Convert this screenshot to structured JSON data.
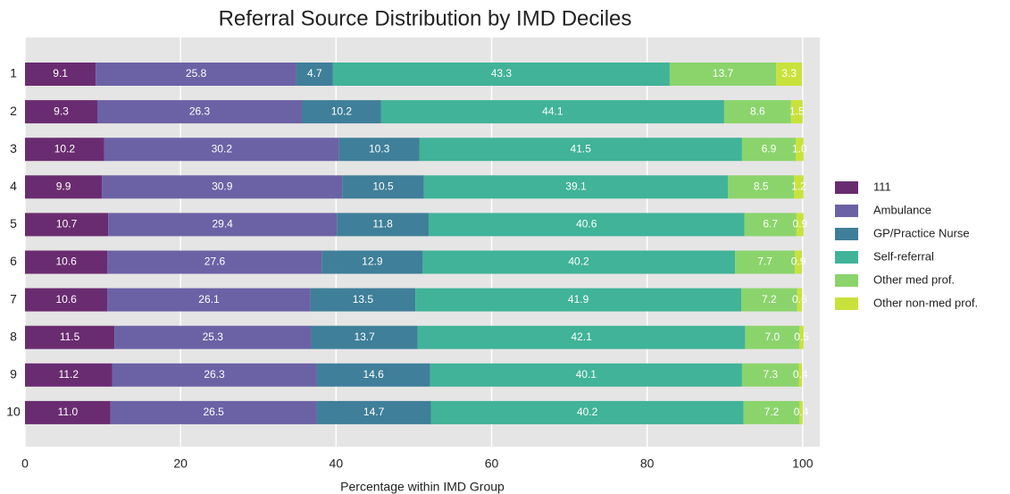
{
  "chart_data": {
    "type": "stacked_barh",
    "title": "Referral Source Distribution by IMD Deciles",
    "xlabel": "Percentage within IMD Group",
    "categories": [
      "1",
      "2",
      "3",
      "4",
      "5",
      "6",
      "7",
      "8",
      "9",
      "10"
    ],
    "series": [
      {
        "name": "111",
        "color": "#6a2c70",
        "values": [
          9.1,
          9.3,
          10.2,
          9.9,
          10.7,
          10.6,
          10.6,
          11.5,
          11.2,
          11.0
        ],
        "value_labels": [
          "9.1",
          "9.3",
          "10.2",
          "9.9",
          "10.7",
          "10.6",
          "10.6",
          "11.5",
          "11.2",
          "11.0"
        ]
      },
      {
        "name": "Ambulance",
        "color": "#6b62a6",
        "values": [
          25.8,
          26.3,
          30.2,
          30.9,
          29.4,
          27.6,
          26.1,
          25.3,
          26.3,
          26.5
        ],
        "value_labels": [
          "25.8",
          "26.3",
          "30.2",
          "30.9",
          "29.4",
          "27.6",
          "26.1",
          "25.3",
          "26.3",
          "26.5"
        ]
      },
      {
        "name": "GP/Practice Nurse",
        "color": "#3f7f99",
        "values": [
          4.7,
          10.2,
          10.3,
          10.5,
          11.8,
          12.9,
          13.5,
          13.7,
          14.6,
          14.7
        ],
        "value_labels": [
          "4.7",
          "10.2",
          "10.3",
          "10.5",
          "11.8",
          "12.9",
          "13.5",
          "13.7",
          "14.6",
          "14.7"
        ]
      },
      {
        "name": "Self-referral",
        "color": "#40b398",
        "values": [
          43.3,
          44.1,
          41.5,
          39.1,
          40.6,
          40.2,
          41.9,
          42.1,
          40.1,
          40.2
        ],
        "value_labels": [
          "43.3",
          "44.1",
          "41.5",
          "39.1",
          "40.6",
          "40.2",
          "41.9",
          "42.1",
          "40.1",
          "40.2"
        ]
      },
      {
        "name": "Other med prof.",
        "color": "#8bd46c",
        "values": [
          13.7,
          8.6,
          6.9,
          8.5,
          6.7,
          7.7,
          7.2,
          7.0,
          7.3,
          7.2
        ],
        "value_labels": [
          "13.7",
          "8.6",
          "6.9",
          "8.5",
          "6.7",
          "7.7",
          "7.2",
          "7.0",
          "7.3",
          "7.2"
        ]
      },
      {
        "name": "Other non-med prof.",
        "color": "#c9e23b",
        "values": [
          3.3,
          1.5,
          1.0,
          1.2,
          0.9,
          0.9,
          0.6,
          0.5,
          0.4,
          0.4
        ],
        "value_labels": [
          "3.3",
          "1.5",
          "1.0",
          "1.2",
          "0.9",
          "0.9",
          "0.6",
          "0.5",
          "0.4",
          "0.4"
        ]
      }
    ],
    "xlim": [
      0,
      102.2
    ],
    "xticks": [
      0,
      20,
      40,
      60,
      80,
      100
    ],
    "grid": true,
    "legend": "right"
  }
}
